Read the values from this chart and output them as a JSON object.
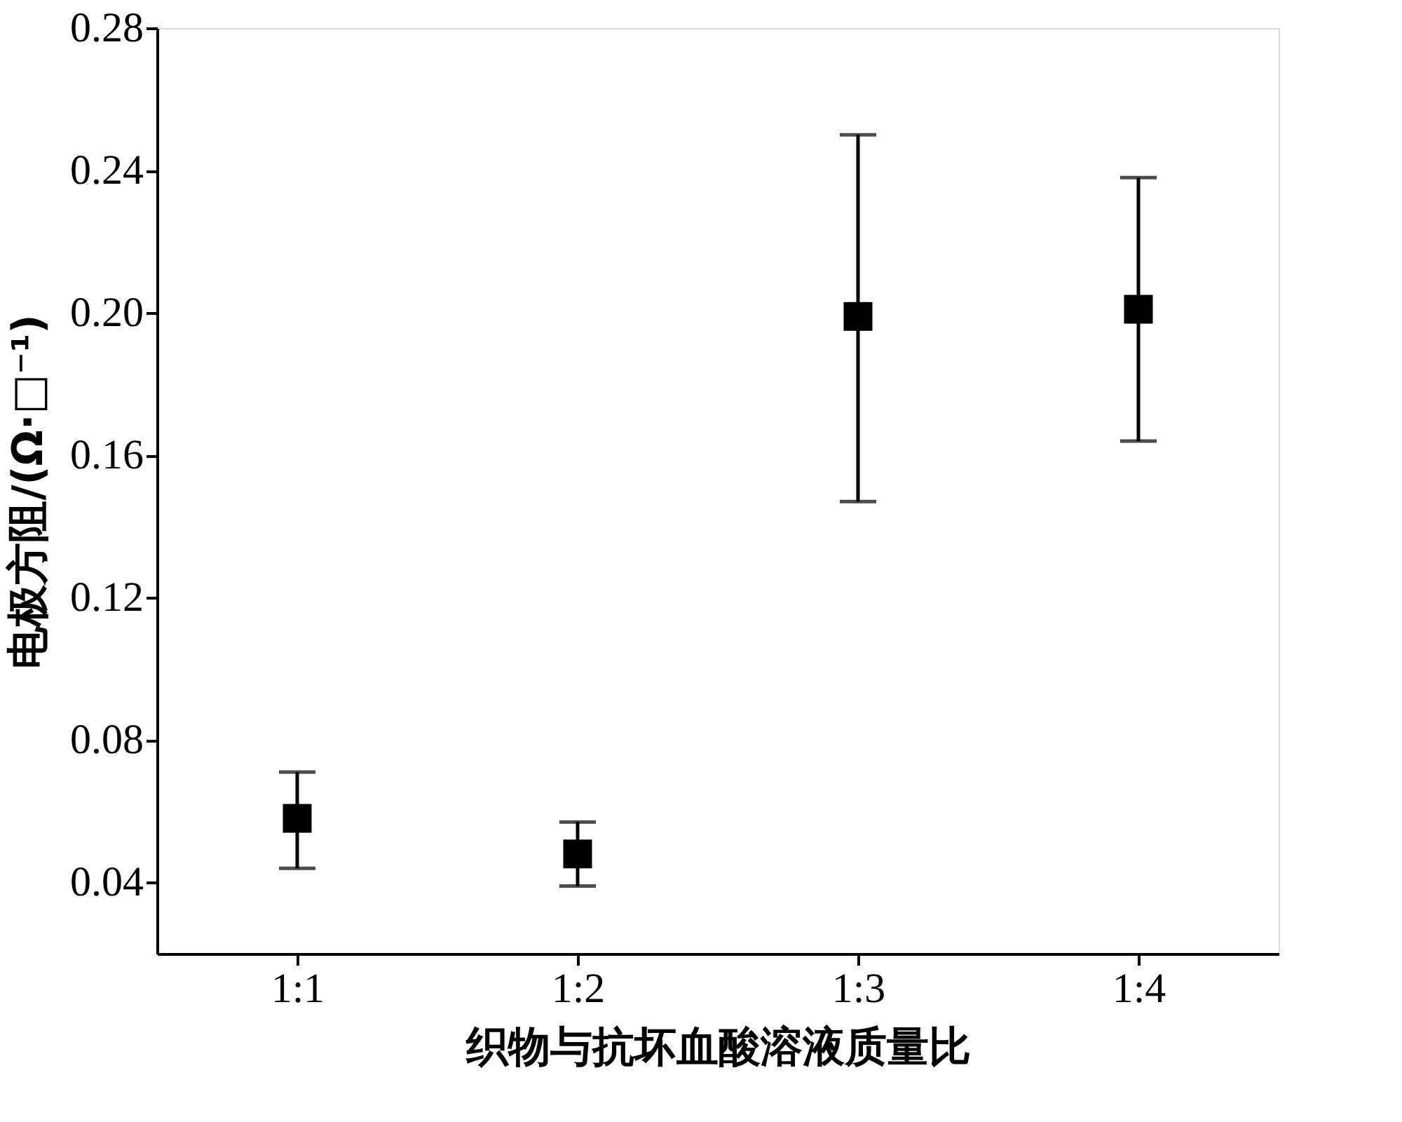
{
  "chart_data": {
    "type": "scatter",
    "xlabel": "织物与抗坏血酸溶液质量比",
    "ylabel": "电极方阻/(Ω·□⁻¹)",
    "categories": [
      "1:1",
      "1:2",
      "1:3",
      "1:4"
    ],
    "values": [
      0.058,
      0.048,
      0.199,
      0.201
    ],
    "errors": [
      [
        0.044,
        0.071
      ],
      [
        0.039,
        0.057
      ],
      [
        0.147,
        0.25
      ],
      [
        0.164,
        0.238
      ]
    ],
    "color": "#000000",
    "marker": "square",
    "grid": false,
    "ylim": [
      0.02,
      0.28
    ],
    "yticks": [
      0.04,
      0.08,
      0.12,
      0.16,
      {
        "value": 0.2,
        "label": "0.20"
      },
      0.24,
      0.28
    ]
  }
}
